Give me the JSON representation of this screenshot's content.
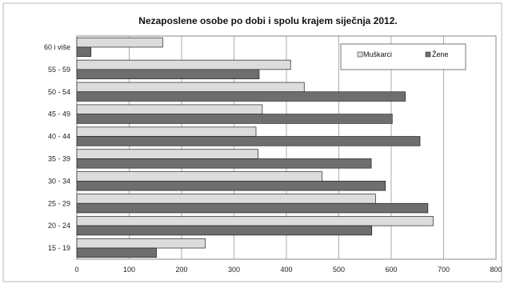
{
  "chart_data": {
    "type": "bar",
    "orientation": "horizontal",
    "title": "Nezaposlene osobe po dobi i spolu krajem siječnja 2012.",
    "categories": [
      "60 i više",
      "55 - 59",
      "50 - 54",
      "45 - 49",
      "40 - 44",
      "35 - 39",
      "30 - 34",
      "25 - 29",
      "20 - 24",
      "15 - 19"
    ],
    "series": [
      {
        "name": "Muškarci",
        "color": "#dcdcdc",
        "values": [
          164,
          408,
          434,
          354,
          342,
          346,
          468,
          570,
          680,
          245
        ]
      },
      {
        "name": "Žene",
        "color": "#6e6e6e",
        "values": [
          27,
          348,
          627,
          602,
          655,
          562,
          589,
          670,
          563,
          152
        ]
      }
    ],
    "xlim": [
      0,
      800
    ],
    "xticks": [
      "0",
      "100",
      "200",
      "300",
      "400",
      "500",
      "600",
      "700",
      "800"
    ],
    "grid": true,
    "legend_position": "top-right"
  }
}
